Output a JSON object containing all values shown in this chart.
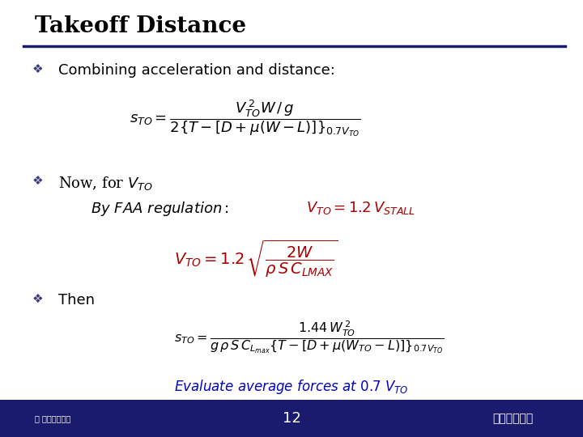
{
  "title": "Takeoff Distance",
  "title_color": "#000000",
  "title_fontsize": 20,
  "bg_color": "#ffffff",
  "footer_bg": "#1a1a6e",
  "footer_text": "12",
  "footer_right": "항공공학기론",
  "bullet_color": "#3a3a7a",
  "bullet_char": "❖",
  "line_color": "#1a1a6e",
  "red_color": "#aa0000",
  "blue_color": "#0000cc",
  "black": "#000000",
  "white": "#ffffff"
}
